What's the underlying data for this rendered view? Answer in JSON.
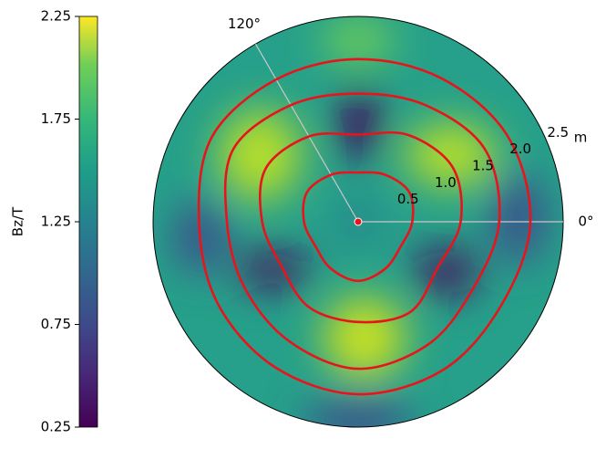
{
  "chart_data": {
    "type": "polar_contour",
    "colorbar": {
      "label": "Bz/T",
      "lim": [
        0.25,
        2.25
      ],
      "ticks": [
        0.25,
        0.75,
        1.25,
        1.75,
        2.25
      ]
    },
    "rlim": [
      0,
      2.5
    ],
    "rticks": [
      0.5,
      {
        "value": 1,
        "label": "1.0"
      },
      1.5,
      {
        "value": 2,
        "label": "2.0"
      },
      2.5
    ],
    "rlabel": "m",
    "thetaticks": [
      {
        "value": 0,
        "label": "0°"
      },
      {
        "value": 120,
        "label": "120°"
      }
    ],
    "theta": [
      0,
      30,
      60,
      90,
      120,
      150,
      180,
      210,
      240,
      270,
      300,
      330
    ],
    "series": [
      {
        "color": "#e8141c",
        "values": [
          0.66,
          0.72,
          0.66,
          0.6,
          0.66,
          0.72,
          0.66,
          0.6,
          0.66,
          0.72,
          0.66,
          0.6
        ]
      },
      {
        "color": "#e8141c",
        "values": [
          1.25,
          1.33,
          1.22,
          1.06,
          1.2,
          1.3,
          1.17,
          1.08,
          1.2,
          1.22,
          1.27,
          1.12
        ]
      },
      {
        "color": "#e8141c",
        "values": [
          1.72,
          1.78,
          1.64,
          1.56,
          1.64,
          1.76,
          1.6,
          1.6,
          1.68,
          1.79,
          1.72,
          1.62
        ]
      },
      {
        "color": "#e8141c",
        "values": [
          2.1,
          2.1,
          2.02,
          1.98,
          2.0,
          2.06,
          1.94,
          1.98,
          2.04,
          2.1,
          2.08,
          2.02
        ]
      }
    ]
  }
}
